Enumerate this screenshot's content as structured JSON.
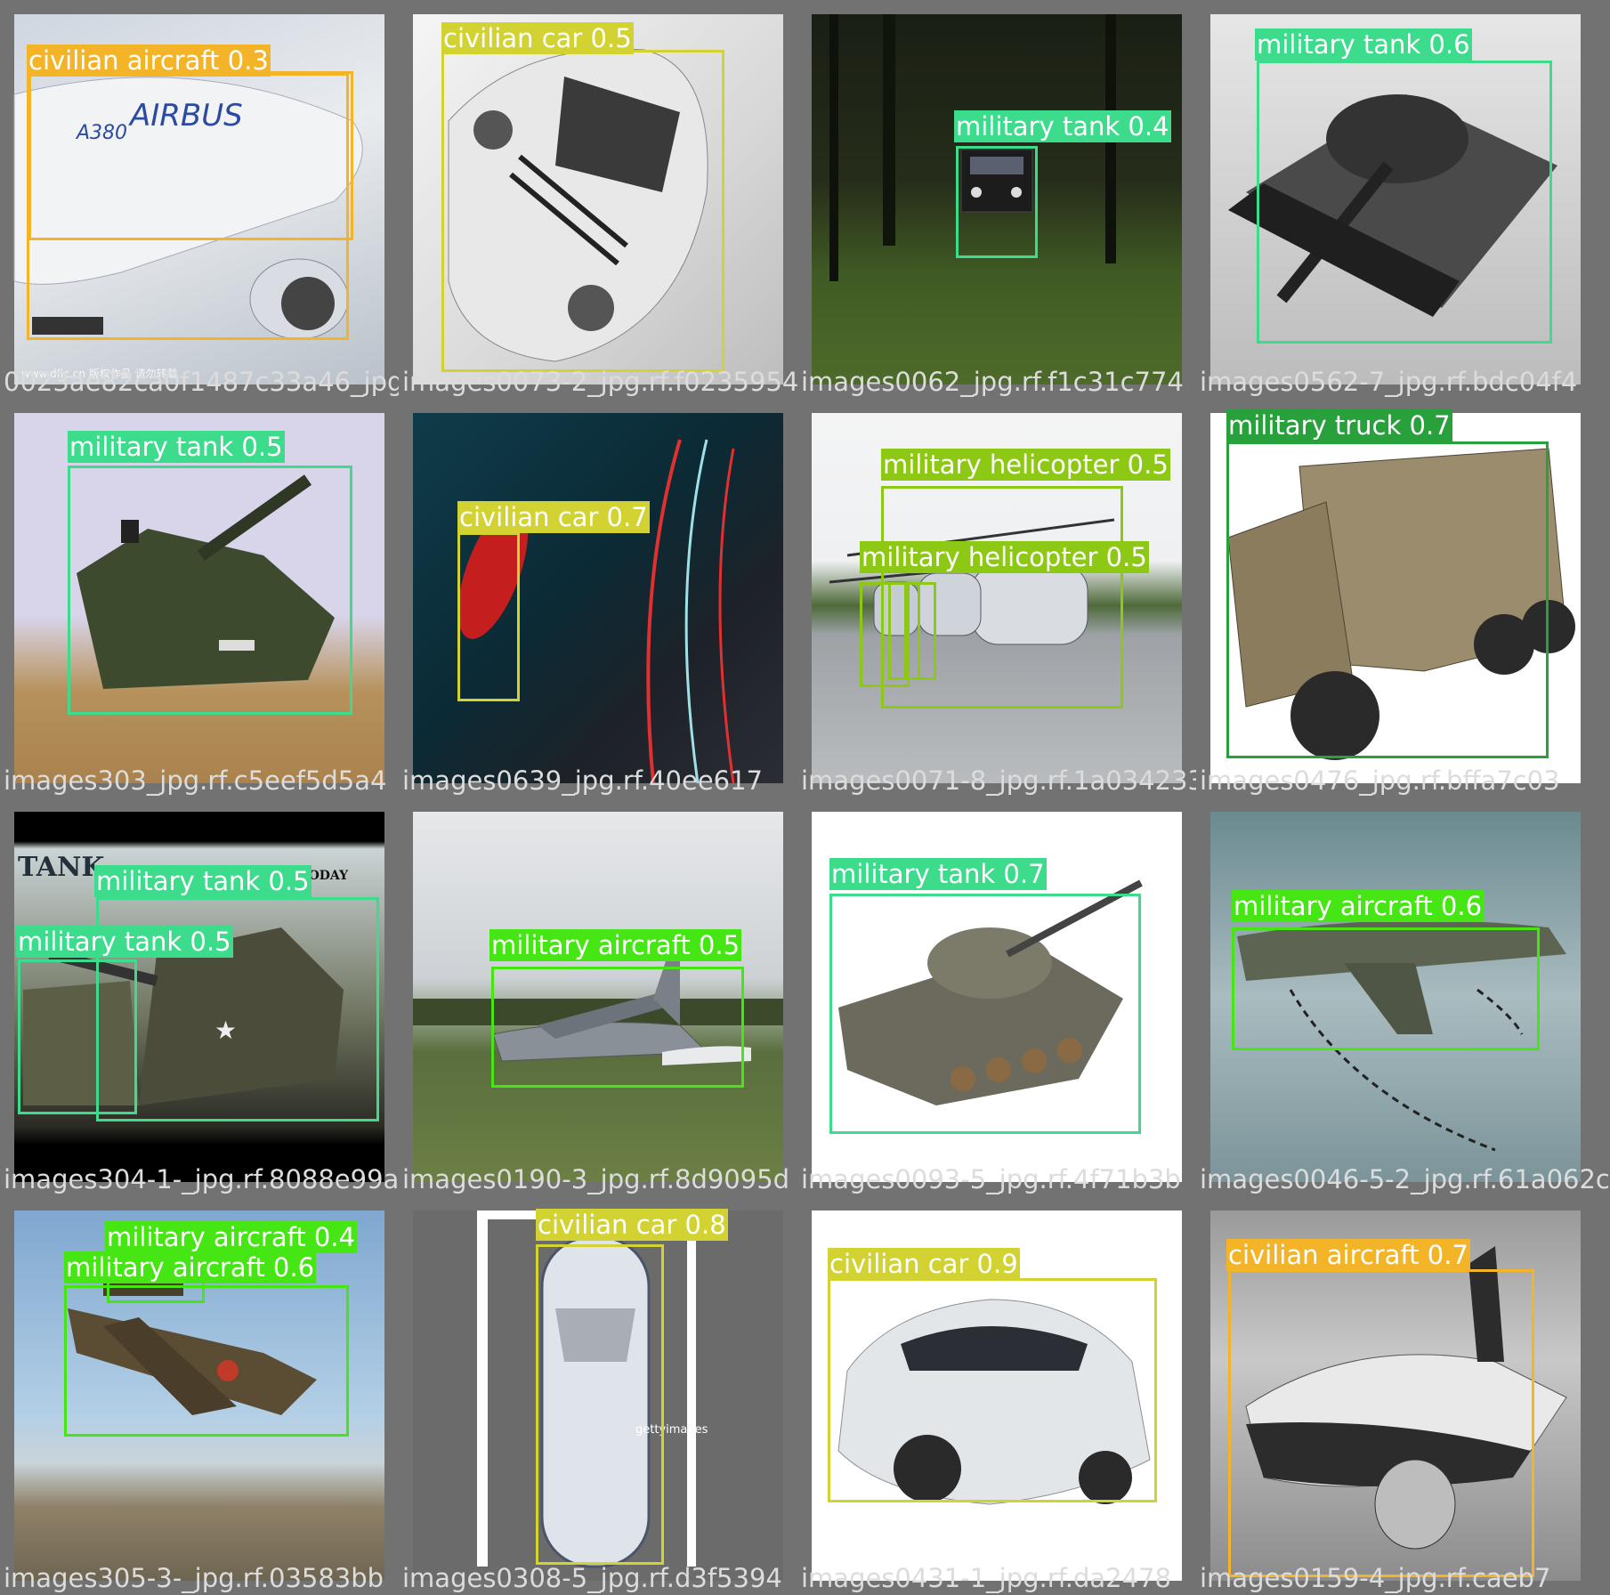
{
  "colors": {
    "civilian_aircraft": "#f4b428",
    "civilian_car": "#d2d232",
    "military_tank": "#3cdc8c",
    "military_helicopter": "#8cc814",
    "military_truck": "#28a03c",
    "military_aircraft": "#46e614",
    "grid_bg": "#727272"
  },
  "tiles": [
    {
      "filename": "0023ae82ca0f1487c33a46_jpg",
      "overlap_filename": "images0073-2_jpg.rf.f023595",
      "watermark": "www.dfic.cn 版权作品 请勿转载",
      "detections": [
        {
          "label": "civilian aircraft 0.3",
          "class": "civilian_aircraft"
        },
        {
          "label": "civilian aircraft 0.3",
          "class": "civilian_aircraft"
        }
      ]
    },
    {
      "filename": "images0073-2_jpg.rf.f0235954",
      "overlap_filename": "",
      "detections": [
        {
          "label": "civilian car 0.5",
          "class": "civilian_car"
        }
      ]
    },
    {
      "filename": "images0062_jpg.rf.f1c31c774",
      "overlap_filename": "",
      "detections": [
        {
          "label": "military tank 0.4",
          "class": "military_tank"
        }
      ]
    },
    {
      "filename": "images0562-7_jpg.rf.bdc04f4",
      "overlap_filename": "",
      "detections": [
        {
          "label": "military tank 0.6",
          "class": "military_tank"
        }
      ]
    },
    {
      "filename": "images303_jpg.rf.c5eef5d5a4",
      "overlap_filename": "",
      "detections": [
        {
          "label": "military tank 0.5",
          "class": "military_tank"
        }
      ]
    },
    {
      "filename": "images0639_jpg.rf.40ee617",
      "overlap_filename": "",
      "detections": [
        {
          "label": "civilian car 0.7",
          "class": "civilian_car"
        }
      ]
    },
    {
      "filename": "images0071-8_jpg.rf.1a034233",
      "overlap_filename": "",
      "detections": [
        {
          "label": "military helicopter 0.5",
          "class": "military_helicopter"
        },
        {
          "label": "military helicopter 0.5",
          "class": "military_helicopter"
        },
        {
          "label": "",
          "class": "military_helicopter"
        },
        {
          "label": "",
          "class": "military_helicopter"
        }
      ]
    },
    {
      "filename": "images0476_jpg.rf.bffa7c03",
      "overlap_filename": "",
      "detections": [
        {
          "label": "military truck 0.7",
          "class": "military_truck"
        }
      ]
    },
    {
      "filename": "images304-1-_jpg.rf.8088e99a",
      "overlap_filename": "",
      "banner_text": "TANK",
      "banner_text_right": "ENCE TODAY",
      "detections": [
        {
          "label": "military tank 0.5",
          "class": "military_tank"
        },
        {
          "label": "military tank 0.5",
          "class": "military_tank"
        }
      ]
    },
    {
      "filename": "images0190-3_jpg.rf.8d9095d",
      "overlap_filename": "",
      "detections": [
        {
          "label": "military aircraft 0.5",
          "class": "military_aircraft"
        }
      ]
    },
    {
      "filename": "images0093-5_jpg.rf.4f71b3b",
      "overlap_filename": "",
      "detections": [
        {
          "label": "military tank 0.7",
          "class": "military_tank"
        }
      ]
    },
    {
      "filename": "images0046-5-2_jpg.rf.61a062c",
      "overlap_filename": "",
      "detections": [
        {
          "label": "military aircraft 0.6",
          "class": "military_aircraft"
        }
      ]
    },
    {
      "filename": "images305-3-_jpg.rf.03583bb",
      "overlap_filename": "",
      "detections": [
        {
          "label": "military aircraft 0.4",
          "class": "military_aircraft"
        },
        {
          "label": "military aircraft 0.6",
          "class": "military_aircraft"
        }
      ]
    },
    {
      "filename": "images0308-5_jpg.rf.d3f5394",
      "overlap_filename": "",
      "watermark": "gettyimages",
      "detections": [
        {
          "label": "civilian car 0.8",
          "class": "civilian_car"
        }
      ]
    },
    {
      "filename": "images0431-1_jpg.rf.da2478",
      "overlap_filename": "",
      "detections": [
        {
          "label": "civilian car 0.9",
          "class": "civilian_car"
        }
      ]
    },
    {
      "filename": "images0159-4_jpg.rf.caeb7",
      "overlap_filename": "",
      "detections": [
        {
          "label": "civilian aircraft 0.7",
          "class": "civilian_aircraft"
        }
      ]
    }
  ]
}
